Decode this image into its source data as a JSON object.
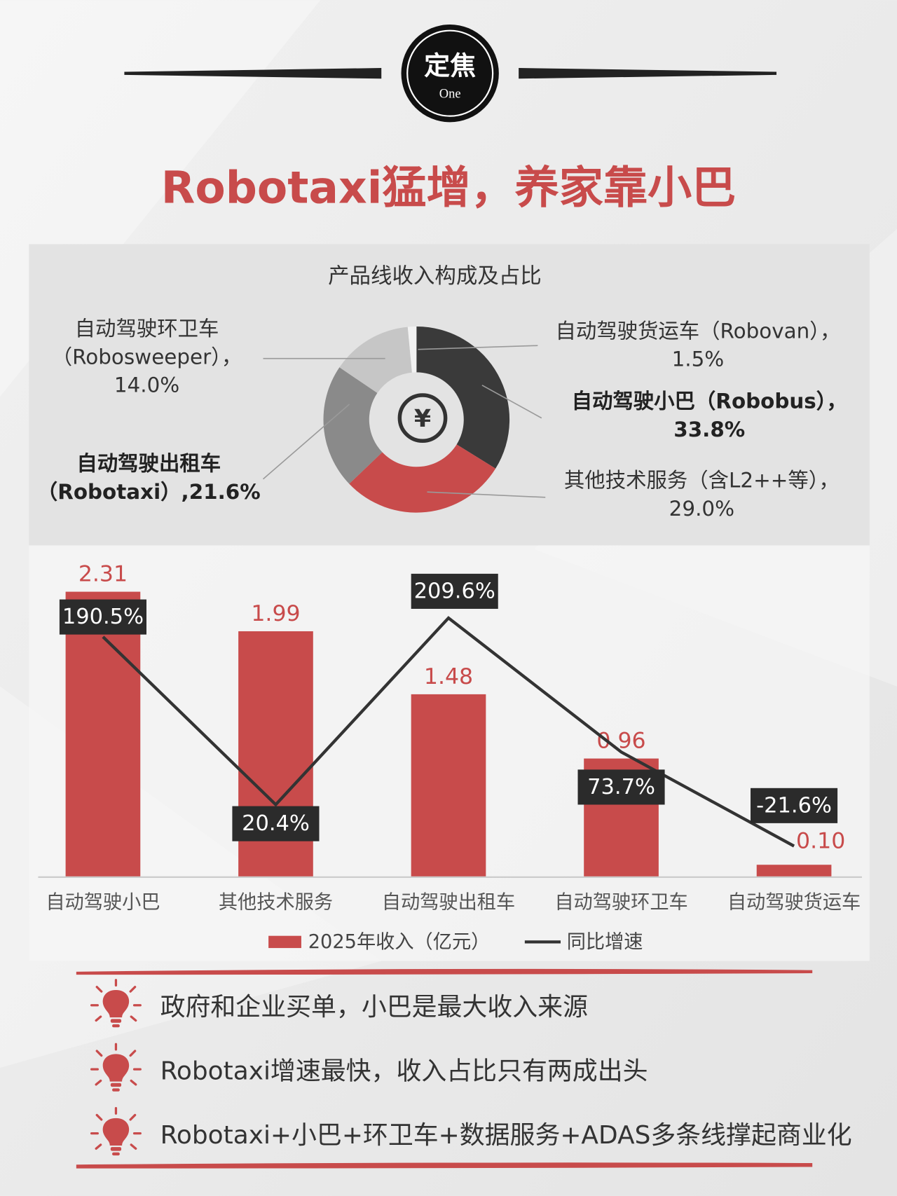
{
  "header": {
    "badge_title": "定焦",
    "badge_sub": "One",
    "title": "Robotaxi猛增，养家靠小巴"
  },
  "chart_data": [
    {
      "type": "pie",
      "title": "产品线收入构成及占比",
      "categories": [
        "自动驾驶小巴（Robobus），",
        "其他技术服务（含L2++等），",
        "自动驾驶出租车（Robotaxi）,",
        "自动驾驶环卫车（Robosweeper），",
        "自动驾驶货运车（Robovan），"
      ],
      "values": [
        33.8,
        29.0,
        21.6,
        14.0,
        1.5
      ],
      "value_labels": [
        "33.8%",
        "29.0%",
        "21.6%",
        "14.0%",
        "1.5%"
      ],
      "colors": [
        "#3a3a3a",
        "#c84b4b",
        "#8a8a8a",
        "#c6c6c6",
        "#f2f2f2"
      ]
    },
    {
      "type": "bar",
      "categories": [
        "自动驾驶小巴",
        "其他技术服务",
        "自动驾驶出租车",
        "自动驾驶环卫车",
        "自动驾驶货运车"
      ],
      "series": [
        {
          "name": "2025年收入（亿元）",
          "type": "bar",
          "color": "#c84b4b",
          "values": [
            2.31,
            1.99,
            1.48,
            0.96,
            0.1
          ],
          "value_labels": [
            "2.31",
            "1.99",
            "1.48",
            "0.96",
            "0.10"
          ]
        },
        {
          "name": "同比增速",
          "type": "line",
          "axis": "y2",
          "color": "#333333",
          "values": [
            190.5,
            20.4,
            209.6,
            73.7,
            -21.6
          ],
          "value_labels": [
            "190.5%",
            "20.4%",
            "209.6%",
            "73.7%",
            "-21.6%"
          ]
        }
      ],
      "ylim": [
        0,
        2.5
      ],
      "y2lim": [
        -50,
        260
      ],
      "legend": "bottom"
    }
  ],
  "bullets": [
    "政府和企业买单，小巴是最大收入来源",
    "Robotaxi增速最快，收入占比只有两成出头",
    "Robotaxi+小巴+环卫车+数据服务+ADAS多条线撑起商业化"
  ]
}
